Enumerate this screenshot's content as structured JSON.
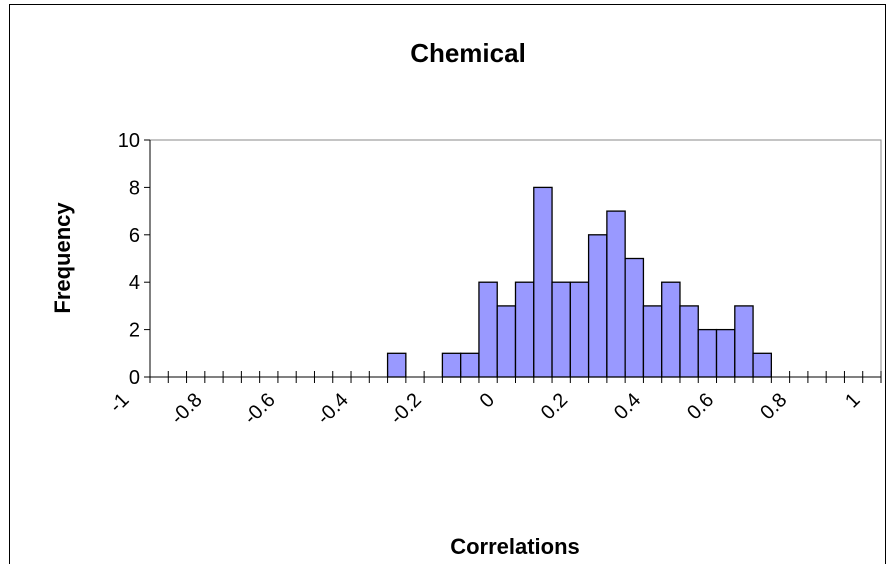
{
  "chart_data": {
    "type": "histogram",
    "title": "Chemical",
    "x_label": "Correlations",
    "y_label": "Frequency",
    "bins": [
      -0.35,
      -0.3,
      -0.25,
      -0.2,
      -0.15,
      -0.1,
      -0.05,
      0,
      0.05,
      0.1,
      0.15,
      0.2,
      0.25,
      0.3,
      0.35,
      0.4,
      0.45,
      0.5,
      0.55,
      0.6,
      0.65,
      0.7
    ],
    "values": [
      1,
      0,
      0,
      1,
      1,
      4,
      3,
      4,
      8,
      4,
      4,
      6,
      7,
      5,
      3,
      4,
      3,
      2,
      2,
      3,
      1
    ],
    "color": "#9999ff",
    "xlim": [
      -1,
      1
    ],
    "xticks": [
      -1,
      -0.8,
      -0.6,
      -0.4,
      -0.2,
      0,
      0.2,
      0.4,
      0.6,
      0.8,
      1
    ],
    "ylim": [
      0,
      10
    ],
    "yticks": [
      0,
      2,
      4,
      6,
      8,
      10
    ],
    "grid": false
  }
}
